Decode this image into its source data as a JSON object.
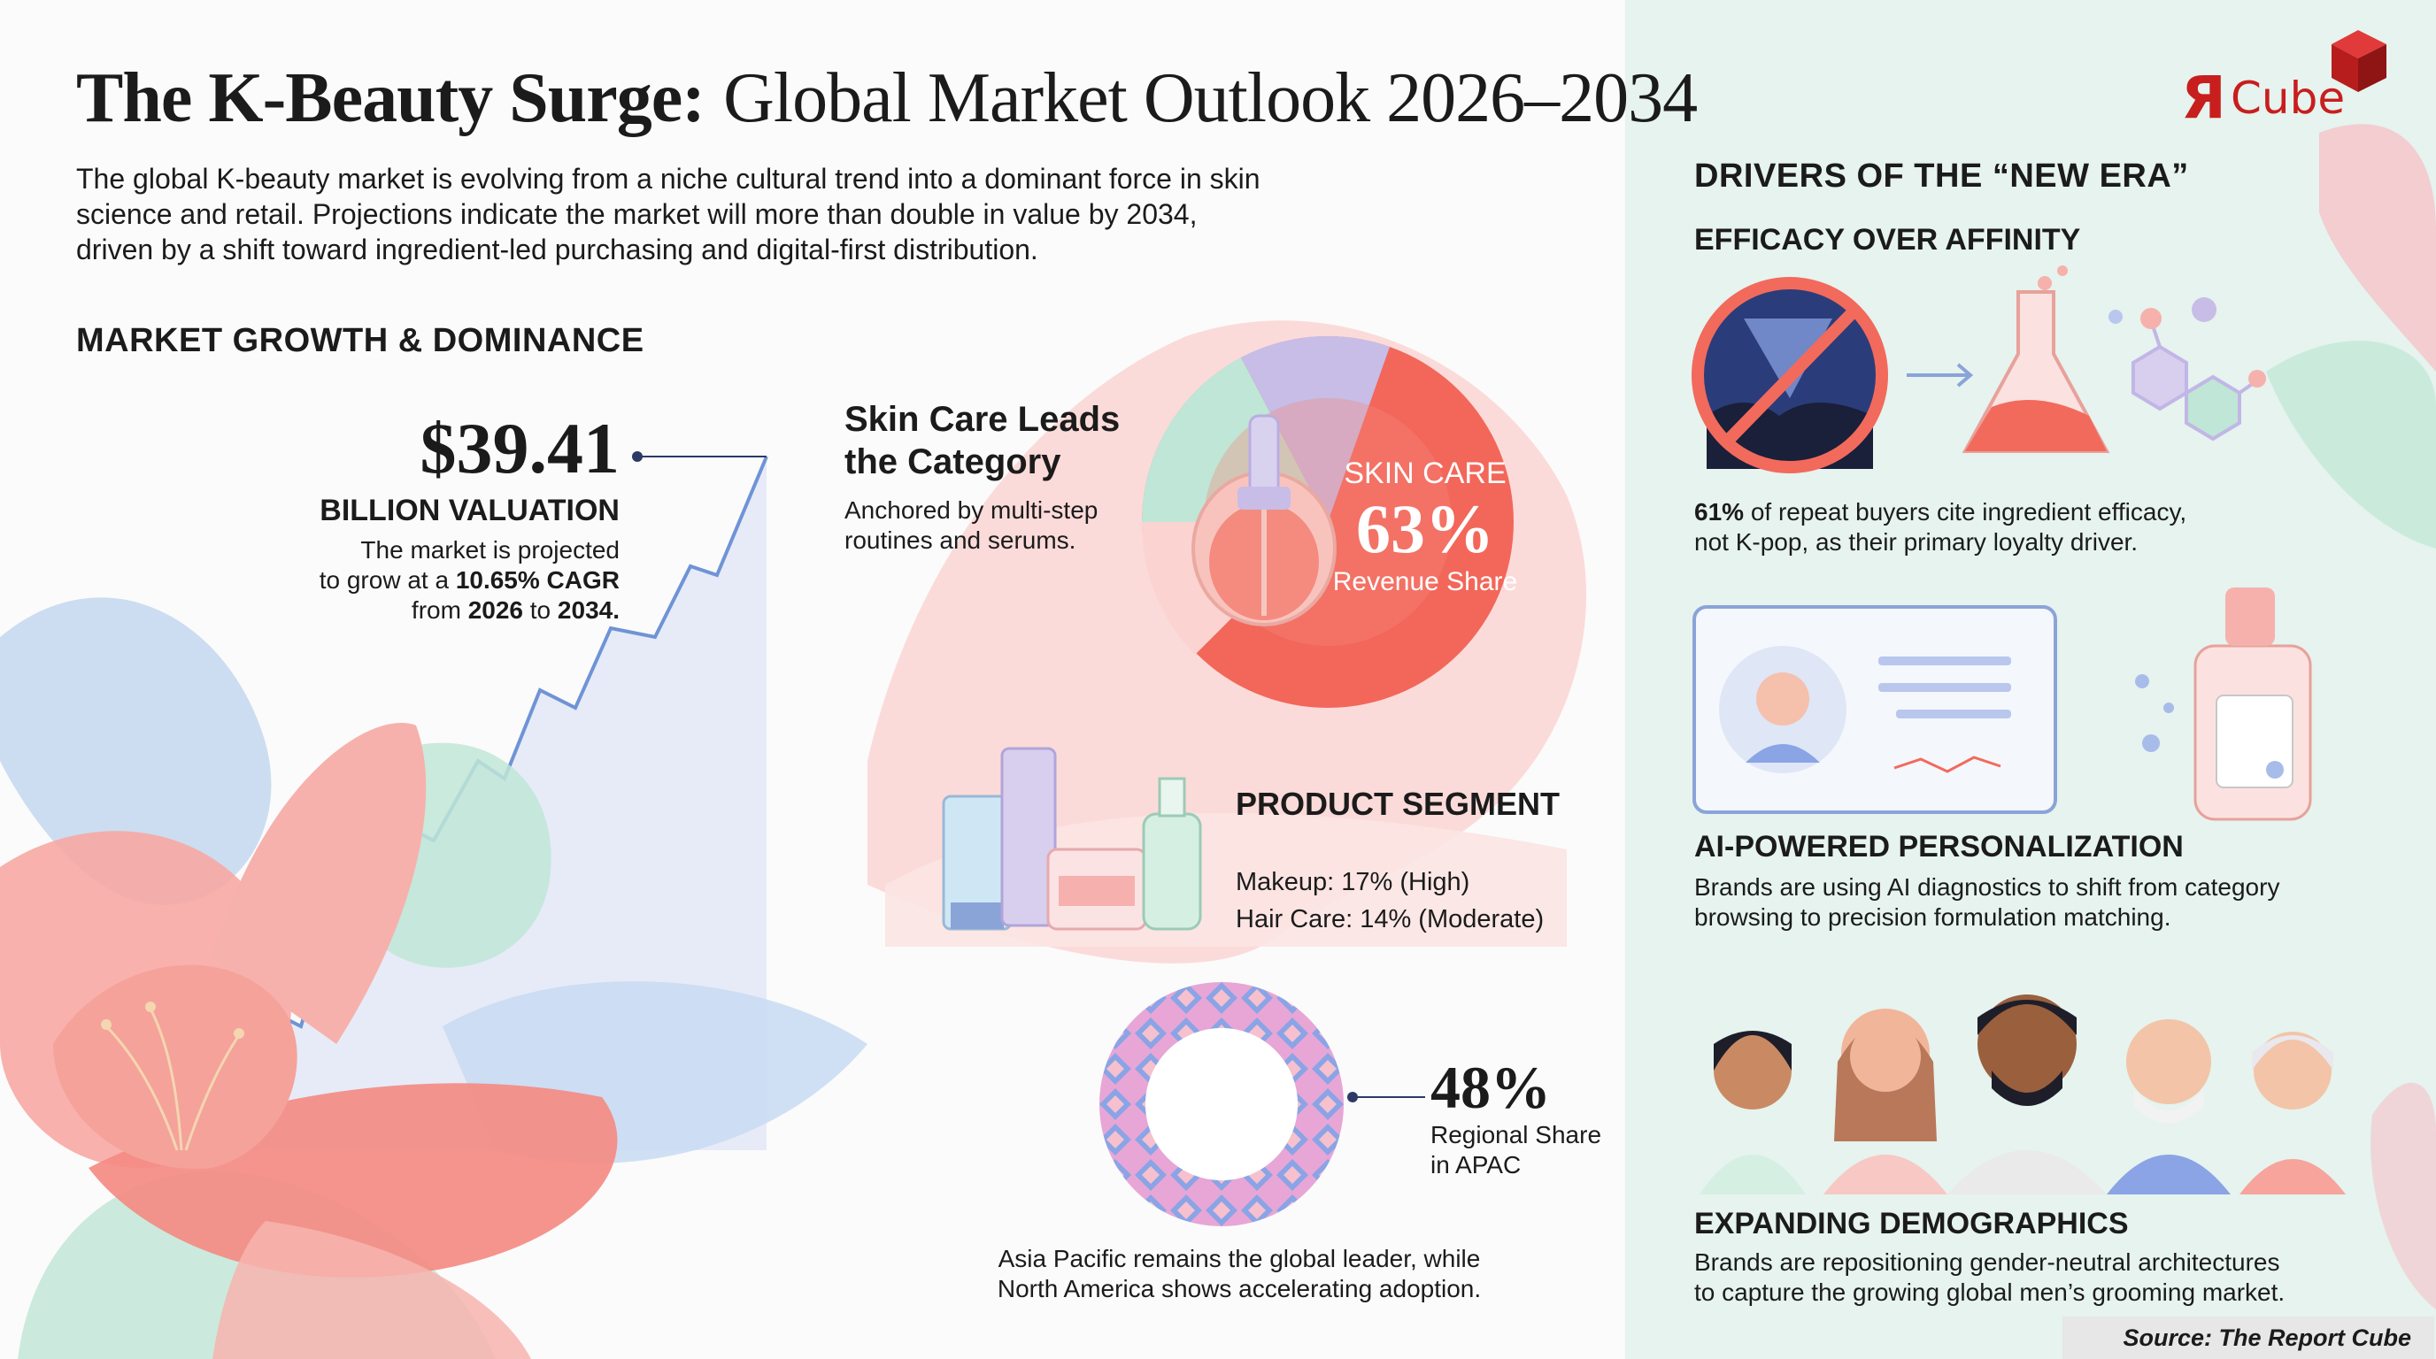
{
  "title": {
    "bold": "The K-Beauty Surge:",
    "light": "Global Market Outlook 2026–2034"
  },
  "intro": [
    "The global K-beauty market is evolving from a niche cultural trend into a dominant force in skin",
    "science and retail. Projections indicate the market will more than double in value by 2034,",
    "driven by a shift toward ingredient-led purchasing and digital-first distribution."
  ],
  "logo": {
    "mark": "Я",
    "text": "Cube"
  },
  "market": {
    "heading": "MARKET GROWTH & DOMINANCE",
    "value": "$39.41",
    "value_label": "BILLION VALUATION",
    "desc_1": "The market is projected",
    "desc_2a": "to grow at a ",
    "desc_2b": "10.65% CAGR",
    "desc_3a": "from ",
    "desc_3b": "2026",
    "desc_3c": " to ",
    "desc_3d": "2034."
  },
  "skincare": {
    "heading_1": "Skin Care Leads",
    "heading_2": "the Category",
    "desc_1": "Anchored by multi-step",
    "desc_2": "routines and serums.",
    "donut_label": "SKIN CARE",
    "share": "63%",
    "share_label": "Revenue Share"
  },
  "segment": {
    "heading": "PRODUCT SEGMENT",
    "makeup": "Makeup: 17% (High)",
    "haircare": "Hair Care: 14% (Moderate)"
  },
  "region": {
    "share": "48%",
    "label_1": "Regional Share",
    "label_2": "in APAC",
    "desc_1": "Asia Pacific remains the global leader, while",
    "desc_2": "North America shows accelerating adoption."
  },
  "drivers": {
    "heading": "DRIVERS OF THE “NEW ERA”",
    "efficacy": {
      "heading": "EFFICACY OVER AFFINITY",
      "line_1a": "61%",
      "line_1b": " of repeat buyers cite ingredient efficacy,",
      "line_2": "not K-pop, as their primary loyalty driver."
    },
    "ai": {
      "heading": "AI-POWERED PERSONALIZATION",
      "line_1": "Brands are using AI diagnostics to shift from category",
      "line_2": "browsing to precision formulation matching."
    },
    "demographics": {
      "heading": "EXPANDING DEMOGRAPHICS",
      "line_1": "Brands are repositioning gender-neutral architectures",
      "line_2": "to capture the growing global men’s grooming market."
    }
  },
  "source": "Source: The Report Cube",
  "colors": {
    "coral": "#f2675a",
    "lavender": "#c7bde6",
    "mint": "#bfe6d6",
    "navy": "#2d3a66",
    "chart_line": "#6f93d6",
    "accent_red": "#c81e1e"
  }
}
